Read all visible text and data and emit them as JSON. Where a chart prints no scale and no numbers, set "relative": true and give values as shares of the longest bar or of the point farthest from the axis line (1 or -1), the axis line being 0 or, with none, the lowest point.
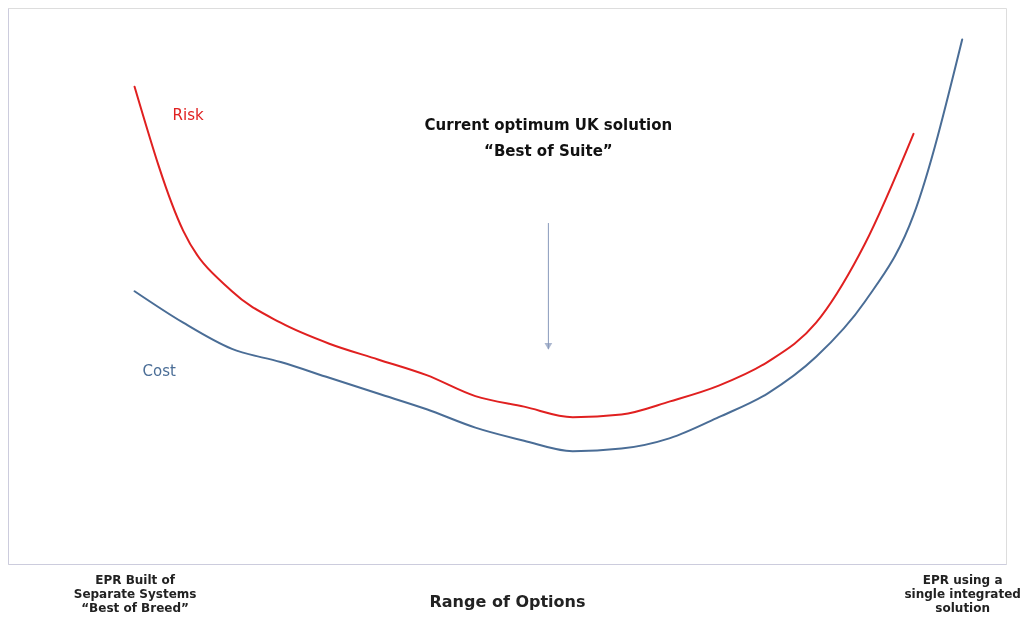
{
  "chart_data": {
    "type": "line",
    "relative": true,
    "xlabel": "Range of Options",
    "categories": [
      "EPR Built of\nSeparate Systems\n“Best of Breed”",
      null,
      null,
      null,
      null,
      null,
      null,
      null,
      null,
      null,
      null,
      null,
      null,
      null,
      null,
      null,
      null,
      "EPR using a\nsingle integrated\nsolution"
    ],
    "series": [
      {
        "name": "Risk",
        "color": "#e02020",
        "values": [
          0.91,
          0.635,
          0.52,
          0.46,
          0.42,
          0.39,
          0.36,
          0.32,
          0.3,
          0.28,
          0.285,
          0.31,
          0.34,
          0.385,
          0.46,
          0.61,
          0.82,
          null
        ]
      },
      {
        "name": "Cost",
        "color": "#4a6d96",
        "values": [
          0.52,
          0.46,
          0.41,
          0.385,
          0.355,
          0.325,
          0.295,
          0.26,
          0.235,
          0.215,
          0.22,
          0.24,
          0.28,
          0.325,
          0.395,
          0.5,
          0.665,
          1.0
        ]
      }
    ],
    "annotations": [
      "Current optimum UK solution\n“Best of Suite”"
    ],
    "grid": false,
    "legend": false,
    "marker": "none",
    "line_style": "solid"
  }
}
